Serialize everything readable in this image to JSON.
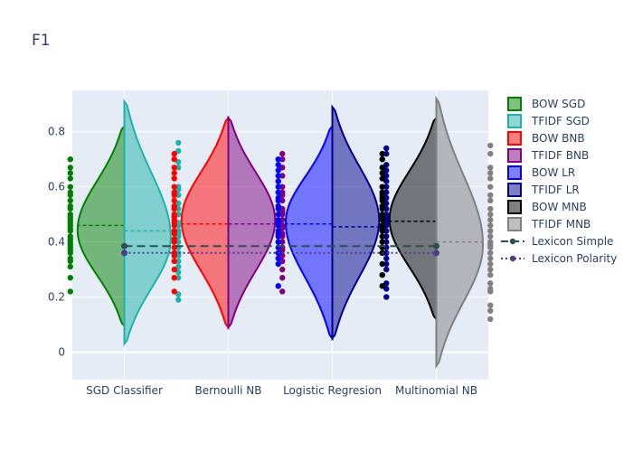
{
  "chart_data": {
    "type": "violin",
    "title": "F1",
    "xlabel": "",
    "ylabel": "",
    "ylim": [
      -0.1,
      0.95
    ],
    "yticks": [
      0,
      0.2,
      0.4,
      0.6,
      0.8
    ],
    "categories": [
      "SGD Classifier",
      "Bernoulli NB",
      "Logistic Regresion",
      "Multinomial NB"
    ],
    "grid": true,
    "legend_position": "right",
    "series": [
      {
        "name": "BOW SGD",
        "category": "SGD Classifier",
        "side": "negative",
        "color": "#008000",
        "range": [
          0.095,
          0.82
        ],
        "peak": 0.44,
        "mean": 0.46,
        "points": [
          0.22,
          0.27,
          0.31,
          0.33,
          0.34,
          0.36,
          0.37,
          0.38,
          0.39,
          0.4,
          0.41,
          0.42,
          0.44,
          0.45,
          0.46,
          0.47,
          0.48,
          0.49,
          0.5,
          0.52,
          0.53,
          0.55,
          0.57,
          0.58,
          0.6,
          0.63,
          0.65,
          0.67,
          0.7
        ]
      },
      {
        "name": "TFIDF SGD",
        "category": "SGD Classifier",
        "side": "positive",
        "color": "#20b2aa",
        "range": [
          0.03,
          0.91
        ],
        "peak": 0.4,
        "mean": 0.44,
        "points": [
          0.19,
          0.21,
          0.27,
          0.29,
          0.31,
          0.33,
          0.35,
          0.36,
          0.38,
          0.4,
          0.42,
          0.43,
          0.44,
          0.46,
          0.47,
          0.5,
          0.52,
          0.54,
          0.57,
          0.59,
          0.6,
          0.67,
          0.69,
          0.73,
          0.76
        ]
      },
      {
        "name": "BOW BNB",
        "category": "Bernoulli NB",
        "side": "negative",
        "color": "#ff0000",
        "range": [
          0.09,
          0.85
        ],
        "peak": 0.48,
        "mean": 0.465,
        "points": [
          0.22,
          0.27,
          0.3,
          0.33,
          0.35,
          0.36,
          0.38,
          0.4,
          0.41,
          0.43,
          0.44,
          0.46,
          0.47,
          0.48,
          0.49,
          0.5,
          0.52,
          0.53,
          0.55,
          0.57,
          0.58,
          0.6,
          0.63,
          0.65,
          0.67,
          0.7,
          0.72
        ]
      },
      {
        "name": "TFIDF BNB",
        "category": "Bernoulli NB",
        "side": "positive",
        "color": "#800080",
        "range": [
          0.09,
          0.85
        ],
        "peak": 0.48,
        "mean": 0.465,
        "points": [
          0.22,
          0.27,
          0.3,
          0.33,
          0.35,
          0.37,
          0.38,
          0.4,
          0.42,
          0.43,
          0.45,
          0.46,
          0.48,
          0.5,
          0.51,
          0.52,
          0.55,
          0.57,
          0.58,
          0.6,
          0.64,
          0.67,
          0.7,
          0.72
        ]
      },
      {
        "name": "BOW LR",
        "category": "Logistic Regresion",
        "side": "negative",
        "color": "#0000ff",
        "range": [
          0.05,
          0.82
        ],
        "peak": 0.48,
        "mean": 0.465,
        "points": [
          0.24,
          0.32,
          0.34,
          0.36,
          0.38,
          0.4,
          0.42,
          0.43,
          0.44,
          0.46,
          0.47,
          0.48,
          0.5,
          0.52,
          0.53,
          0.55,
          0.56,
          0.58,
          0.6,
          0.62,
          0.64,
          0.66,
          0.68,
          0.7
        ]
      },
      {
        "name": "TFIDF LR",
        "category": "Logistic Regresion",
        "side": "positive",
        "color": "#00008b",
        "range": [
          0.05,
          0.89
        ],
        "peak": 0.48,
        "mean": 0.455,
        "points": [
          0.2,
          0.23,
          0.25,
          0.3,
          0.32,
          0.34,
          0.36,
          0.38,
          0.4,
          0.42,
          0.44,
          0.46,
          0.47,
          0.48,
          0.49,
          0.5,
          0.52,
          0.54,
          0.56,
          0.58,
          0.6,
          0.62,
          0.64,
          0.66,
          0.68,
          0.72,
          0.74
        ]
      },
      {
        "name": "BOW MNB",
        "category": "Multinomial NB",
        "side": "negative",
        "color": "#000000",
        "range": [
          0.12,
          0.85
        ],
        "peak": 0.48,
        "mean": 0.475,
        "points": [
          0.24,
          0.28,
          0.32,
          0.36,
          0.38,
          0.4,
          0.42,
          0.44,
          0.45,
          0.46,
          0.48,
          0.49,
          0.5,
          0.52,
          0.53,
          0.55,
          0.56,
          0.57,
          0.58,
          0.6,
          0.63,
          0.65,
          0.67,
          0.7,
          0.72
        ]
      },
      {
        "name": "TFIDF MNB",
        "category": "Multinomial NB",
        "side": "positive",
        "color": "#808080",
        "range": [
          -0.05,
          0.92
        ],
        "peak": 0.38,
        "mean": 0.4,
        "points": [
          0.12,
          0.15,
          0.17,
          0.22,
          0.23,
          0.25,
          0.28,
          0.3,
          0.32,
          0.34,
          0.36,
          0.38,
          0.39,
          0.4,
          0.42,
          0.44,
          0.46,
          0.48,
          0.5,
          0.52,
          0.55,
          0.57,
          0.6,
          0.63,
          0.65,
          0.67,
          0.72,
          0.75
        ]
      }
    ],
    "reference_lines": [
      {
        "name": "Lexicon Simple",
        "color": "#2f4f4f",
        "dash": "dash",
        "points": [
          [
            "SGD Classifier",
            0.385
          ],
          [
            "Multinomial NB",
            0.385
          ]
        ]
      },
      {
        "name": "Lexicon Polarity",
        "color": "#483d8b",
        "dash": "dot",
        "points": [
          [
            "SGD Classifier",
            0.36
          ],
          [
            "Multinomial NB",
            0.36
          ]
        ]
      }
    ]
  }
}
